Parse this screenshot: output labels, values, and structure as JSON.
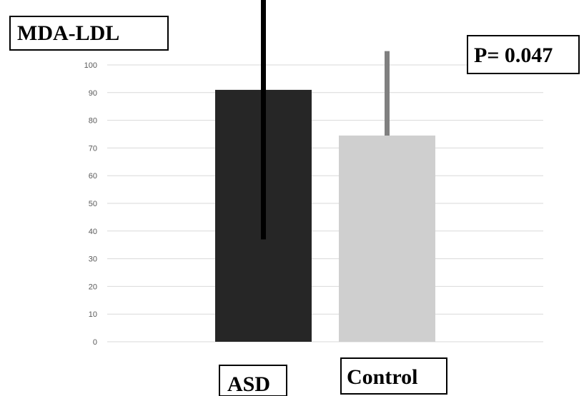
{
  "chart_data": {
    "type": "bar",
    "title": "MDA-LDL",
    "annotation": "P= 0.047",
    "categories": [
      "ASD",
      "Control"
    ],
    "values": [
      91,
      74.5
    ],
    "error_bars": [
      {
        "low": 37,
        "high": 130
      },
      {
        "low": 74.5,
        "high": 105
      }
    ],
    "bar_colors": [
      "#262626",
      "#cfcfcf"
    ],
    "error_bar_colors": [
      "#000000",
      "#808080"
    ],
    "yticks": [
      0,
      10,
      20,
      30,
      40,
      50,
      60,
      70,
      80,
      90,
      100
    ],
    "ylim": [
      0,
      130
    ],
    "grid": true,
    "xlabel": "",
    "ylabel": ""
  }
}
